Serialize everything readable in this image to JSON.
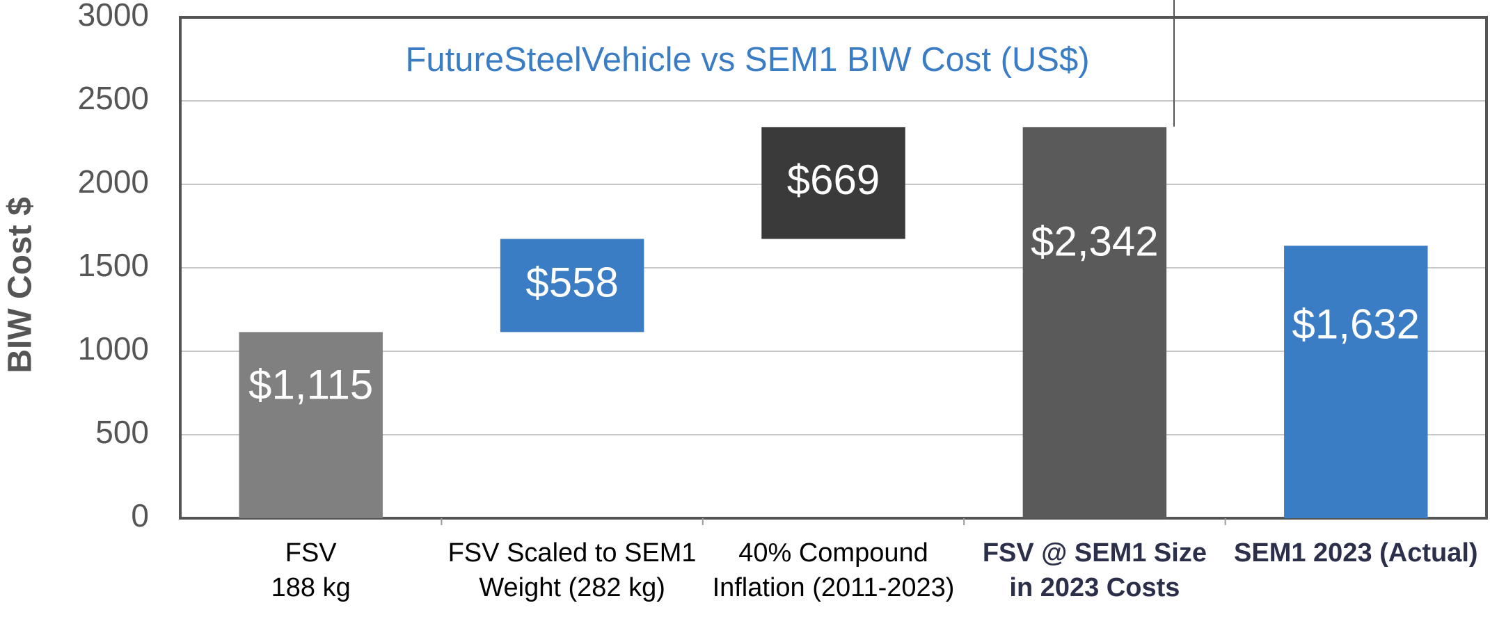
{
  "chart_data": {
    "type": "waterfall",
    "title": "FutureSteelVehicle vs SEM1 BIW Cost (US$)",
    "y_label": "BIW Cost $",
    "categories": [
      "FSV\n188 kg",
      "FSV Scaled to SEM1 Weight (282 kg)",
      "40% Compound Inflation (2011-2023)",
      "FSV @ SEM1 Size in 2023 Costs",
      "SEM1 2023 (Actual)"
    ],
    "values": [
      1115,
      558,
      669,
      2342,
      1632
    ],
    "value_labels": [
      "$1,115",
      "$558",
      "$669",
      "$2,342",
      "$1,632"
    ],
    "measures": [
      "absolute",
      "relative",
      "relative",
      "total",
      "absolute"
    ],
    "colors": [
      "#808080",
      "#3b7dc4",
      "#3a3a3a",
      "#5a5a5a",
      "#3b7dc4"
    ],
    "category_label_colors": [
      "#000000",
      "#000000",
      "#000000",
      "#2b2f4a",
      "#2b2f4a"
    ],
    "title_color": "#3b7dc4",
    "ylim": [
      0,
      3000
    ],
    "yticks": [
      0,
      500,
      1000,
      1500,
      2000,
      2500,
      3000
    ],
    "grid": true
  }
}
